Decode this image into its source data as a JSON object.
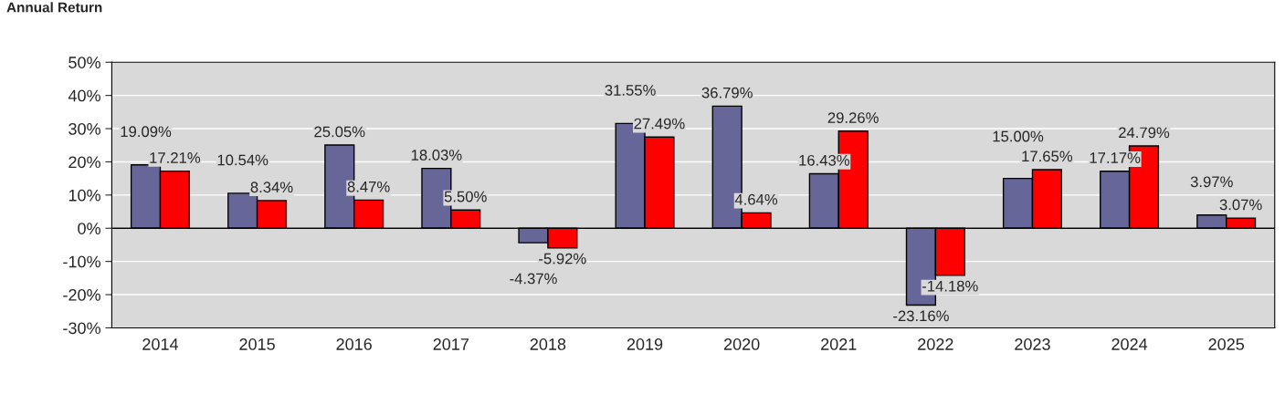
{
  "chart_data": {
    "type": "bar",
    "title": "Annual Return",
    "categories": [
      "2014",
      "2015",
      "2016",
      "2017",
      "2018",
      "2019",
      "2020",
      "2021",
      "2022",
      "2023",
      "2024",
      "2025"
    ],
    "series": [
      {
        "color": "#666699",
        "values": [
          19.09,
          10.54,
          25.05,
          18.03,
          -4.37,
          31.55,
          36.79,
          16.43,
          -23.16,
          15.0,
          17.17,
          3.97
        ],
        "value_labels": [
          "19.09%",
          "10.54%",
          "25.05%",
          "18.03%",
          "-4.37%",
          "31.55%",
          "36.79%",
          "16.43%",
          "-23.16%",
          "15.00%",
          "17.17%",
          "3.97%"
        ]
      },
      {
        "color": "#ff0000",
        "values": [
          17.21,
          8.34,
          8.47,
          5.5,
          -5.92,
          27.49,
          4.64,
          29.26,
          -14.18,
          17.65,
          24.79,
          3.07
        ],
        "value_labels": [
          "17.21%",
          "8.34%",
          "8.47%",
          "5.50%",
          "-5.92%",
          "27.49%",
          "4.64%",
          "29.26%",
          "-14.18%",
          "17.65%",
          "24.79%",
          "3.07%"
        ]
      }
    ],
    "ylim": [
      -30,
      50
    ],
    "yticks": [
      {
        "value": -30,
        "label": "-30%"
      },
      {
        "value": -20,
        "label": "-20%"
      },
      {
        "value": -10,
        "label": "-10%"
      },
      {
        "value": 0,
        "label": "0%"
      },
      {
        "value": 10,
        "label": "10%"
      },
      {
        "value": 20,
        "label": "20%"
      },
      {
        "value": 30,
        "label": "30%"
      },
      {
        "value": 40,
        "label": "40%"
      },
      {
        "value": 50,
        "label": "50%"
      }
    ],
    "grid": "y"
  }
}
